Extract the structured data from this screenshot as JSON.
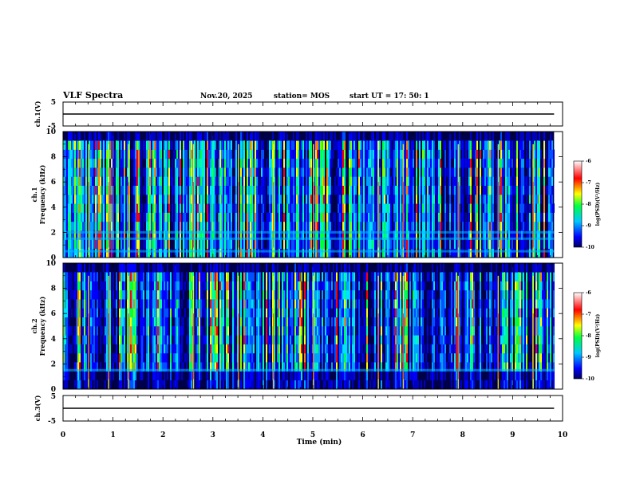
{
  "header": {
    "title": "VLF Spectra",
    "date": "Nov.20, 2025",
    "station": "station= MOS",
    "start": "start  UT =   17: 50: 1"
  },
  "colorbar": {
    "label": "log(PSD)(V²/Hz)",
    "ticks": [
      "-6",
      "-7",
      "-8",
      "-9",
      "-10"
    ]
  },
  "chart_data": [
    {
      "type": "line",
      "name": "ch1-waveform",
      "ylabel": "ch.1(V)",
      "ylim": [
        -5,
        5
      ],
      "yticks": [
        "5",
        "-5"
      ],
      "value": 0,
      "xlim": [
        0,
        10
      ]
    },
    {
      "type": "heatmap",
      "name": "ch1-spectrogram",
      "ylabel": "ch.1\nFrequency (kHz)",
      "ylabel_lines": [
        "ch.1",
        "Frequency (kHz)"
      ],
      "ylim": [
        0,
        10
      ],
      "yticks": [
        "0",
        "2",
        "4",
        "6",
        "8",
        "10"
      ],
      "xlim": [
        0,
        10
      ],
      "data_end_min": 9.83,
      "colorscale_log_psd": [
        -10,
        -6
      ],
      "bands_khz": [
        0.5,
        1.5,
        2.0
      ],
      "strong_sferic_minutes": [
        0.5,
        0.9,
        1.3,
        2.6,
        3.5,
        4.2,
        5.0,
        6.3,
        6.8,
        7.9,
        8.7,
        9.4
      ]
    },
    {
      "type": "heatmap",
      "name": "ch2-spectrogram",
      "ylabel": "ch.2\nFrequency (kHz)",
      "ylabel_lines": [
        "ch.2",
        "Frequency (kHz)"
      ],
      "ylim": [
        0,
        10
      ],
      "yticks": [
        "0",
        "2",
        "4",
        "6",
        "8",
        "10"
      ],
      "xlim": [
        0,
        10
      ],
      "data_end_min": 9.83,
      "colorscale_log_psd": [
        -10,
        -6
      ],
      "bands_khz": [
        1.5
      ],
      "strong_sferic_minutes": [
        0.5,
        0.9,
        1.3,
        2.6,
        3.5,
        4.2,
        5.0,
        6.3,
        6.8,
        7.9,
        8.7,
        9.4
      ]
    },
    {
      "type": "line",
      "name": "ch3-waveform",
      "ylabel": "ch.3(V)",
      "ylim": [
        -5,
        5
      ],
      "yticks": [
        "5",
        "-5"
      ],
      "value": 0,
      "xlim": [
        0,
        10
      ]
    }
  ],
  "xaxis": {
    "label": "Time  (min)",
    "ticks": [
      "0",
      "1",
      "2",
      "3",
      "4",
      "5",
      "6",
      "7",
      "8",
      "9",
      "10"
    ]
  }
}
